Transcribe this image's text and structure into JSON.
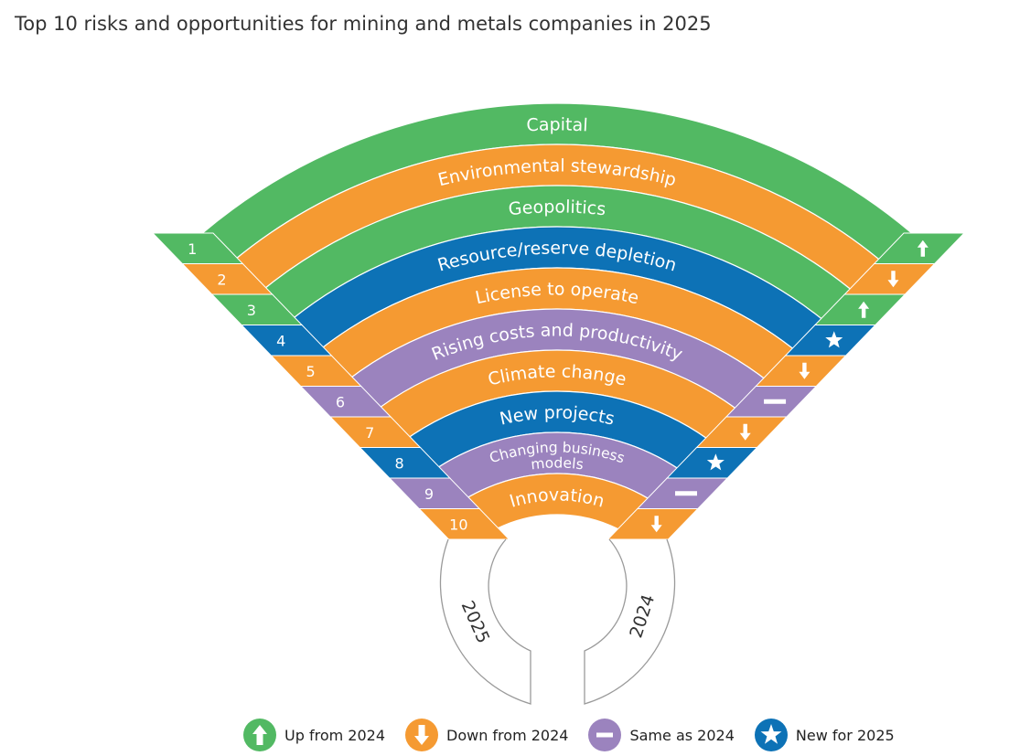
{
  "title": "Top 10 risks and opportunities for mining and metals companies in 2025",
  "colors": {
    "up": "#52b963",
    "down": "#f59a32",
    "same": "#9b83be",
    "new": "#0d72b6",
    "text_on_band": "#ffffff"
  },
  "risks": [
    {
      "rank": "1",
      "label": "Capital",
      "trend": "up",
      "color": "up"
    },
    {
      "rank": "2",
      "label": "Environmental stewardship",
      "trend": "down",
      "color": "down"
    },
    {
      "rank": "3",
      "label": "Geopolitics",
      "trend": "up",
      "color": "up"
    },
    {
      "rank": "4",
      "label": "Resource/reserve depletion",
      "trend": "new",
      "color": "new"
    },
    {
      "rank": "5",
      "label": "License to operate",
      "trend": "down",
      "color": "down"
    },
    {
      "rank": "6",
      "label": "Rising costs and productivity",
      "trend": "same",
      "color": "same"
    },
    {
      "rank": "7",
      "label": "Climate change",
      "trend": "down",
      "color": "down"
    },
    {
      "rank": "8",
      "label": "New projects",
      "trend": "new",
      "color": "new"
    },
    {
      "rank": "9",
      "label": "Changing business models",
      "trend": "same",
      "color": "same"
    },
    {
      "rank": "10",
      "label": "Innovation",
      "trend": "down",
      "color": "down"
    }
  ],
  "axis_labels": {
    "left": "2025",
    "right": "2024"
  },
  "legend": [
    {
      "key": "up",
      "label": "Up from 2024",
      "icon": "arrow-up-icon",
      "color": "#52b963"
    },
    {
      "key": "down",
      "label": "Down from 2024",
      "icon": "arrow-down-icon",
      "color": "#f59a32"
    },
    {
      "key": "same",
      "label": "Same as 2024",
      "icon": "dash-icon",
      "color": "#9b83be"
    },
    {
      "key": "new",
      "label": "New for 2025",
      "icon": "star-icon",
      "color": "#0d72b6"
    }
  ]
}
